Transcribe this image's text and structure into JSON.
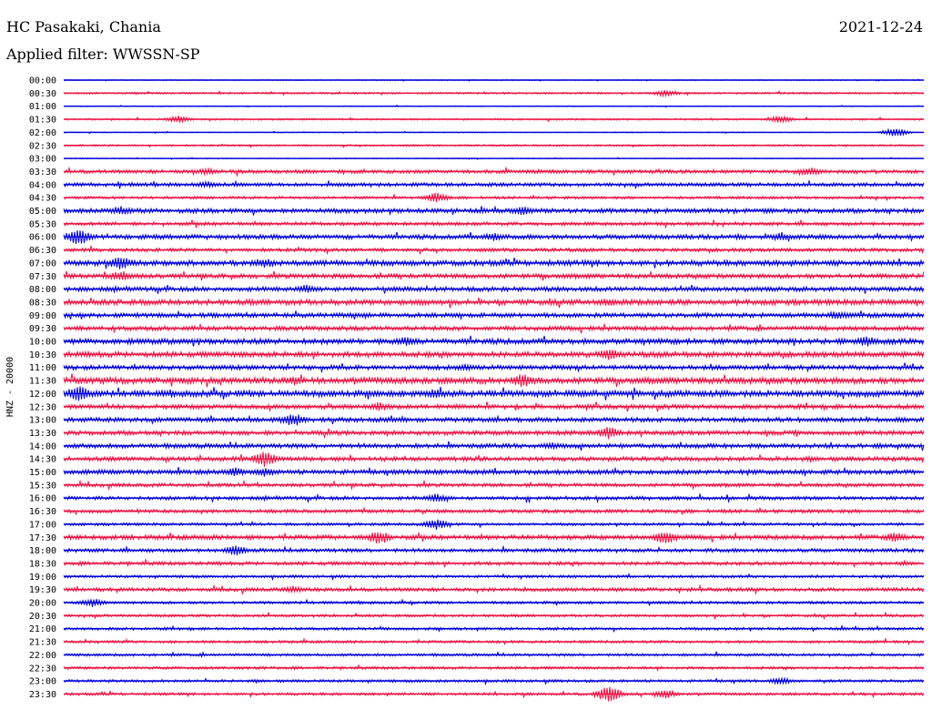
{
  "header": {
    "station": "HC Pasakaki, Chania",
    "date": "2021-12-24",
    "filter": "Applied filter: WWSSN-SP"
  },
  "colors": {
    "odd": "#0000dd",
    "even": "#ee1144"
  },
  "chart_data": {
    "type": "line",
    "ylabel": "HNZ - 20000",
    "row_labels": [
      "00:00",
      "00:30",
      "01:00",
      "01:30",
      "02:00",
      "02:30",
      "03:00",
      "03:30",
      "04:00",
      "04:30",
      "05:00",
      "05:30",
      "06:00",
      "06:30",
      "07:00",
      "07:30",
      "08:00",
      "08:30",
      "09:00",
      "09:30",
      "10:00",
      "10:30",
      "11:00",
      "11:30",
      "12:00",
      "12:30",
      "13:00",
      "13:30",
      "14:00",
      "14:30",
      "15:00",
      "15:30",
      "16:00",
      "16:30",
      "17:00",
      "17:30",
      "18:00",
      "18:30",
      "19:00",
      "19:30",
      "20:00",
      "20:30",
      "21:00",
      "21:30",
      "22:00",
      "22:30",
      "23:00",
      "23:30"
    ],
    "row_minutes": 30,
    "noise_level": [
      0.5,
      1,
      0.5,
      1,
      0.5,
      1,
      0.5,
      2,
      2,
      1.5,
      2.5,
      2,
      2.5,
      2,
      3,
      2.5,
      2.5,
      3,
      2.5,
      2.5,
      3,
      3,
      2.5,
      3.5,
      3.5,
      2.5,
      2.5,
      2.5,
      2.5,
      2.5,
      2.5,
      2,
      2,
      2,
      1.5,
      2.5,
      2,
      2,
      1.5,
      2,
      1.5,
      1.5,
      1.5,
      1.5,
      1.5,
      1.5,
      1.5,
      1.5
    ],
    "events": [
      {
        "row": 1,
        "minute": 21,
        "amp": 4
      },
      {
        "row": 3,
        "minute": 4,
        "amp": 4
      },
      {
        "row": 3,
        "minute": 25,
        "amp": 4
      },
      {
        "row": 4,
        "minute": 29,
        "amp": 5
      },
      {
        "row": 7,
        "minute": 5,
        "amp": 4
      },
      {
        "row": 7,
        "minute": 26,
        "amp": 5
      },
      {
        "row": 8,
        "minute": 5,
        "amp": 4
      },
      {
        "row": 9,
        "minute": 13,
        "amp": 6
      },
      {
        "row": 10,
        "minute": 2,
        "amp": 5
      },
      {
        "row": 10,
        "minute": 16,
        "amp": 5
      },
      {
        "row": 12,
        "minute": 0.5,
        "amp": 10
      },
      {
        "row": 12,
        "minute": 15,
        "amp": 5
      },
      {
        "row": 12,
        "minute": 25,
        "amp": 5
      },
      {
        "row": 14,
        "minute": 2,
        "amp": 8
      },
      {
        "row": 14,
        "minute": 7,
        "amp": 6
      },
      {
        "row": 15,
        "minute": 2,
        "amp": 6
      },
      {
        "row": 16,
        "minute": 8.5,
        "amp": 5
      },
      {
        "row": 17,
        "minute": 19,
        "amp": 5
      },
      {
        "row": 18,
        "minute": 27,
        "amp": 5
      },
      {
        "row": 20,
        "minute": 12,
        "amp": 6
      },
      {
        "row": 20,
        "minute": 28,
        "amp": 6
      },
      {
        "row": 21,
        "minute": 19,
        "amp": 7
      },
      {
        "row": 22,
        "minute": 14,
        "amp": 4
      },
      {
        "row": 23,
        "minute": 8,
        "amp": 6
      },
      {
        "row": 23,
        "minute": 16,
        "amp": 8
      },
      {
        "row": 24,
        "minute": 0.5,
        "amp": 9
      },
      {
        "row": 24,
        "minute": 13,
        "amp": 6
      },
      {
        "row": 25,
        "minute": 11,
        "amp": 5
      },
      {
        "row": 26,
        "minute": 8,
        "amp": 8
      },
      {
        "row": 27,
        "minute": 19,
        "amp": 7
      },
      {
        "row": 28,
        "minute": 17,
        "amp": 4
      },
      {
        "row": 29,
        "minute": 7,
        "amp": 9
      },
      {
        "row": 30,
        "minute": 6,
        "amp": 5
      },
      {
        "row": 30,
        "minute": 7,
        "amp": 5
      },
      {
        "row": 32,
        "minute": 13,
        "amp": 5
      },
      {
        "row": 34,
        "minute": 13,
        "amp": 6
      },
      {
        "row": 35,
        "minute": 11,
        "amp": 8
      },
      {
        "row": 35,
        "minute": 21,
        "amp": 8
      },
      {
        "row": 35,
        "minute": 29,
        "amp": 6
      },
      {
        "row": 36,
        "minute": 6,
        "amp": 6
      },
      {
        "row": 39,
        "minute": 8,
        "amp": 4
      },
      {
        "row": 40,
        "minute": 1,
        "amp": 5
      },
      {
        "row": 46,
        "minute": 25,
        "amp": 4
      },
      {
        "row": 47,
        "minute": 19,
        "amp": 10
      },
      {
        "row": 47,
        "minute": 21,
        "amp": 5
      }
    ]
  }
}
